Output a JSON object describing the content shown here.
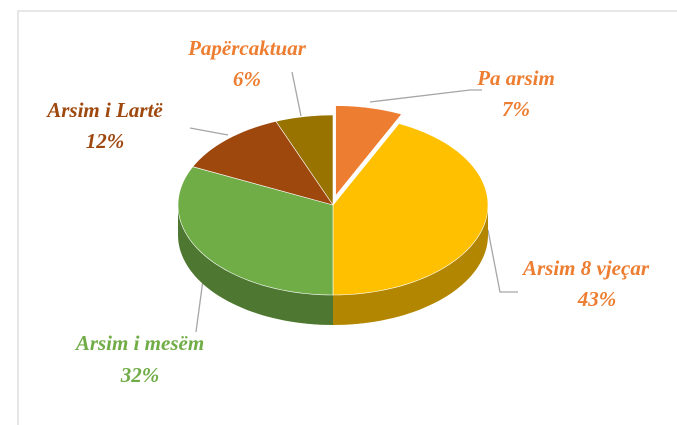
{
  "chart_data": {
    "type": "pie",
    "categories": [
      "Pa arsim",
      "Arsim 8 vjeçar",
      "Arsim i mesëm",
      "Arsim i Lartë",
      "Papërcaktuar"
    ],
    "values": [
      7,
      43,
      32,
      12,
      6
    ],
    "value_labels": [
      "7%",
      "43%",
      "32%",
      "12%",
      "6%"
    ],
    "colors": [
      "#ED7D31",
      "#FFC000",
      "#70AD47",
      "#9E480E",
      "#997300"
    ],
    "label_colors": [
      "#ED7D31",
      "#ED7D31",
      "#70AD47",
      "#9E480E",
      "#ED7D31"
    ]
  }
}
